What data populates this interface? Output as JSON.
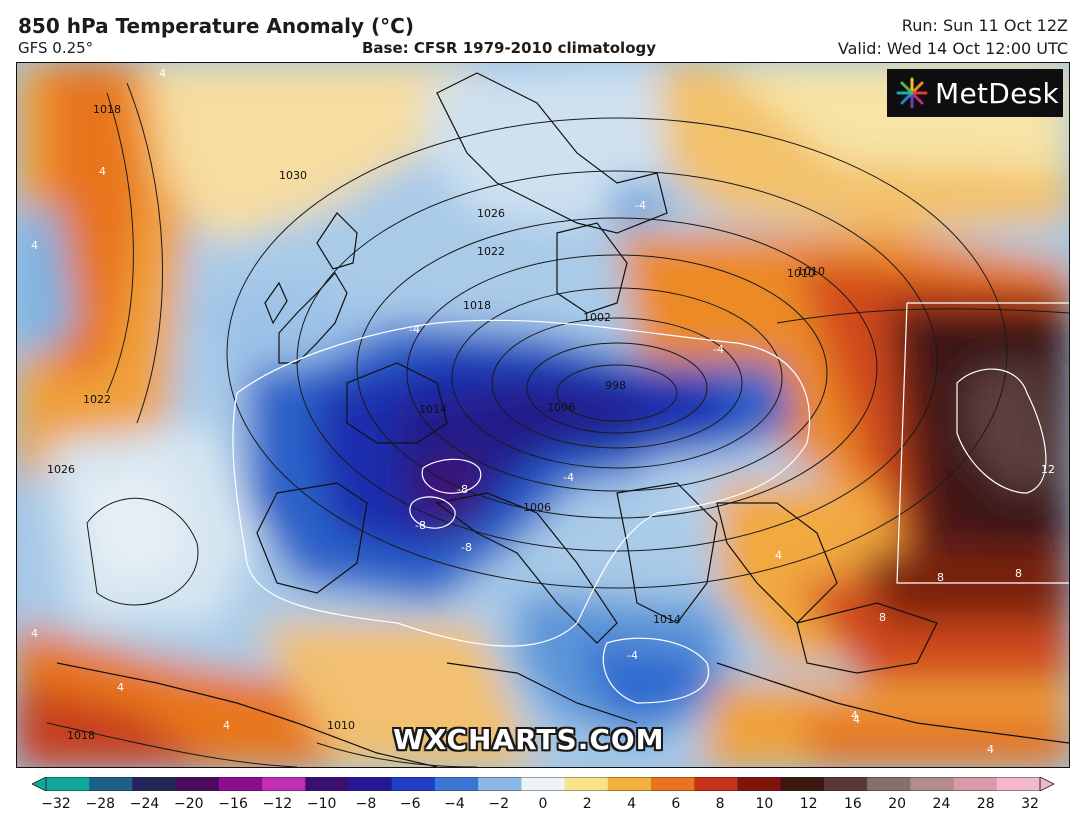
{
  "header": {
    "title": "850 hPa Temperature Anomaly (°C)",
    "model": "GFS 0.25°",
    "base": "Base: CFSR 1979-2010 climatology",
    "run": "Run: Sun 11 Oct 12Z",
    "valid": "Valid: Wed 14 Oct 12:00 UTC"
  },
  "logo": {
    "text": "MetDesk",
    "icon": "metdesk-burst-icon"
  },
  "watermark": "WXCHARTS.COM",
  "colorbar": {
    "ticks": [
      "−32",
      "−28",
      "−24",
      "−20",
      "−16",
      "−12",
      "−10",
      "−8",
      "−6",
      "−4",
      "−2",
      "0",
      "2",
      "4",
      "6",
      "8",
      "10",
      "12",
      "16",
      "20",
      "24",
      "28",
      "32"
    ],
    "colors": [
      "#10a89a",
      "#1e5f8c",
      "#22245a",
      "#4a0a5e",
      "#8b0f8a",
      "#c22fb5",
      "#3b0f70",
      "#27189a",
      "#1f3fc8",
      "#3a78d4",
      "#8cb9e3",
      "#eef3f7",
      "#f7e38a",
      "#f3b23b",
      "#e9741f",
      "#c7321a",
      "#7d1608",
      "#3e160f",
      "#5a3a36",
      "#8a6e6a",
      "#b58a8c",
      "#d79aa8",
      "#f3b8cf"
    ]
  },
  "map": {
    "isobar_labels": [
      "1030",
      "1026",
      "1022",
      "1018",
      "1014",
      "1010",
      "1006",
      "1002",
      "998",
      "1018",
      "1022",
      "1026",
      "1006",
      "1014",
      "1010",
      "1018",
      "1010"
    ],
    "anomaly_labels": [
      "4",
      "4",
      "4",
      "-4",
      "-4",
      "-4",
      "-4",
      "-8",
      "-8",
      "-8",
      "-4",
      "4",
      "4",
      "8",
      "8",
      "8",
      "12",
      "4",
      "4",
      "4",
      "4",
      "4"
    ]
  }
}
